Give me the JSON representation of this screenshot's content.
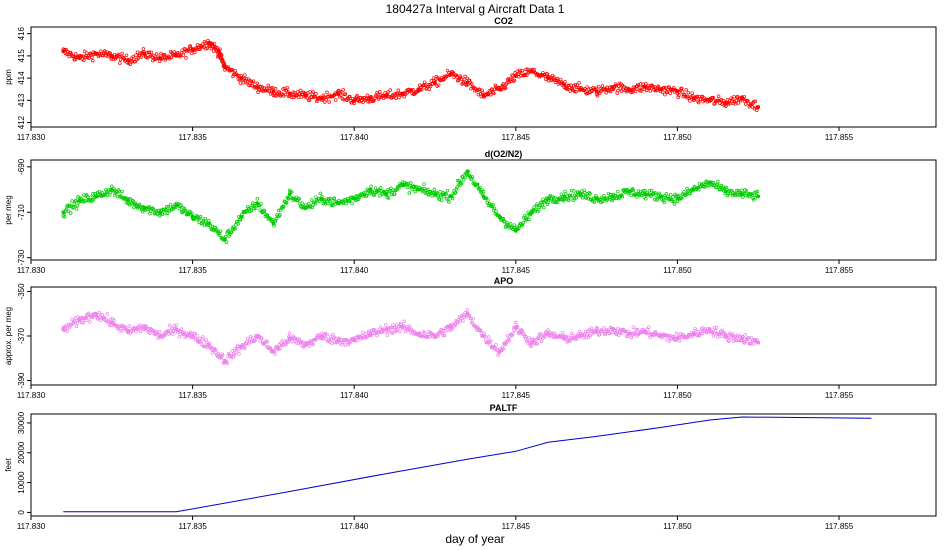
{
  "figure": {
    "title": "180427a   Interval g Aircraft Data 1",
    "xlabel": "day of year"
  },
  "chart_data": [
    {
      "type": "scatter",
      "title": "CO2",
      "xlabel": "",
      "ylabel": "ppm",
      "xlim": [
        117.83,
        117.858
      ],
      "ylim": [
        411.8,
        416.3
      ],
      "xticks": [
        "117.830",
        "117.835",
        "117.840",
        "117.845",
        "117.850",
        "117.855"
      ],
      "yticks": [
        "412",
        "413",
        "414",
        "415",
        "416"
      ],
      "color": "#ff0000",
      "series": [
        {
          "values": [
            [
              117.831,
              415.2
            ],
            [
              117.8315,
              414.9
            ],
            [
              117.832,
              415.1
            ],
            [
              117.8325,
              415.0
            ],
            [
              117.833,
              414.8
            ],
            [
              117.8335,
              415.1
            ],
            [
              117.834,
              414.9
            ],
            [
              117.8345,
              415.0
            ],
            [
              117.835,
              415.3
            ],
            [
              117.8355,
              415.6
            ],
            [
              117.8358,
              415.2
            ],
            [
              117.836,
              414.5
            ],
            [
              117.8365,
              414.0
            ],
            [
              117.837,
              413.6
            ],
            [
              117.8375,
              413.4
            ],
            [
              117.838,
              413.3
            ],
            [
              117.8385,
              413.2
            ],
            [
              117.839,
              413.1
            ],
            [
              117.8395,
              413.3
            ],
            [
              117.84,
              413.0
            ],
            [
              117.8405,
              413.1
            ],
            [
              117.841,
              413.2
            ],
            [
              117.8415,
              413.3
            ],
            [
              117.842,
              413.5
            ],
            [
              117.8425,
              413.8
            ],
            [
              117.843,
              414.2
            ],
            [
              117.8435,
              413.8
            ],
            [
              117.844,
              413.2
            ],
            [
              117.8445,
              413.5
            ],
            [
              117.845,
              414.1
            ],
            [
              117.8455,
              414.3
            ],
            [
              117.846,
              414.0
            ],
            [
              117.8465,
              413.7
            ],
            [
              117.847,
              413.5
            ],
            [
              117.8475,
              413.4
            ],
            [
              117.848,
              413.6
            ],
            [
              117.8485,
              413.5
            ],
            [
              117.849,
              413.6
            ],
            [
              117.8495,
              413.5
            ],
            [
              117.85,
              413.4
            ],
            [
              117.8505,
              413.1
            ],
            [
              117.851,
              413.0
            ],
            [
              117.8515,
              412.9
            ],
            [
              117.852,
              413.1
            ],
            [
              117.8525,
              412.7
            ]
          ]
        }
      ]
    },
    {
      "type": "scatter",
      "title": "d(O2/N2)",
      "xlabel": "",
      "ylabel": "per meg",
      "xlim": [
        117.83,
        117.858
      ],
      "ylim": [
        -731,
        -687
      ],
      "xticks": [
        "117.830",
        "117.835",
        "117.840",
        "117.845",
        "117.850",
        "117.855"
      ],
      "yticks": [
        "-730",
        "-710",
        "-690"
      ],
      "color": "#00cc00",
      "series": [
        {
          "values": [
            [
              117.831,
              -710
            ],
            [
              117.8315,
              -705
            ],
            [
              117.832,
              -703
            ],
            [
              117.8325,
              -700
            ],
            [
              117.833,
              -705
            ],
            [
              117.8335,
              -708
            ],
            [
              117.834,
              -710
            ],
            [
              117.8345,
              -707
            ],
            [
              117.835,
              -712
            ],
            [
              117.8355,
              -715
            ],
            [
              117.836,
              -722
            ],
            [
              117.8365,
              -712
            ],
            [
              117.837,
              -706
            ],
            [
              117.8375,
              -715
            ],
            [
              117.838,
              -702
            ],
            [
              117.8385,
              -708
            ],
            [
              117.839,
              -704
            ],
            [
              117.8395,
              -706
            ],
            [
              117.84,
              -704
            ],
            [
              117.8405,
              -700
            ],
            [
              117.841,
              -702
            ],
            [
              117.8415,
              -698
            ],
            [
              117.842,
              -700
            ],
            [
              117.8425,
              -702
            ],
            [
              117.843,
              -703
            ],
            [
              117.8435,
              -692
            ],
            [
              117.844,
              -703
            ],
            [
              117.8445,
              -712
            ],
            [
              117.845,
              -718
            ],
            [
              117.8455,
              -710
            ],
            [
              117.846,
              -704
            ],
            [
              117.8465,
              -703
            ],
            [
              117.847,
              -702
            ],
            [
              117.8475,
              -704
            ],
            [
              117.848,
              -703
            ],
            [
              117.8485,
              -701
            ],
            [
              117.849,
              -702
            ],
            [
              117.8495,
              -703
            ],
            [
              117.85,
              -704
            ],
            [
              117.8505,
              -700
            ],
            [
              117.851,
              -697
            ],
            [
              117.8515,
              -701
            ],
            [
              117.852,
              -702
            ],
            [
              117.8525,
              -703
            ]
          ]
        }
      ]
    },
    {
      "type": "scatter",
      "title": "APO",
      "xlabel": "",
      "ylabel": "approx. per meg",
      "xlim": [
        117.83,
        117.858
      ],
      "ylim": [
        -392,
        -348
      ],
      "xticks": [
        "117.830",
        "117.835",
        "117.840",
        "117.845",
        "117.850",
        "117.855"
      ],
      "yticks": [
        "-390",
        "-370",
        "-350"
      ],
      "color": "#ee82ee",
      "series": [
        {
          "values": [
            [
              117.831,
              -367
            ],
            [
              117.8315,
              -363
            ],
            [
              117.832,
              -360
            ],
            [
              117.8325,
              -364
            ],
            [
              117.833,
              -368
            ],
            [
              117.8335,
              -366
            ],
            [
              117.834,
              -370
            ],
            [
              117.8345,
              -367
            ],
            [
              117.835,
              -370
            ],
            [
              117.8355,
              -374
            ],
            [
              117.836,
              -381
            ],
            [
              117.8365,
              -375
            ],
            [
              117.837,
              -370
            ],
            [
              117.8375,
              -377
            ],
            [
              117.838,
              -371
            ],
            [
              117.8385,
              -374
            ],
            [
              117.839,
              -370
            ],
            [
              117.8395,
              -372
            ],
            [
              117.84,
              -372
            ],
            [
              117.8405,
              -369
            ],
            [
              117.841,
              -367
            ],
            [
              117.8415,
              -366
            ],
            [
              117.842,
              -369
            ],
            [
              117.8425,
              -370
            ],
            [
              117.843,
              -366
            ],
            [
              117.8435,
              -360
            ],
            [
              117.844,
              -370
            ],
            [
              117.8445,
              -377
            ],
            [
              117.845,
              -366
            ],
            [
              117.8455,
              -373
            ],
            [
              117.846,
              -369
            ],
            [
              117.8465,
              -371
            ],
            [
              117.847,
              -370
            ],
            [
              117.8475,
              -368
            ],
            [
              117.848,
              -367
            ],
            [
              117.8485,
              -369
            ],
            [
              117.849,
              -368
            ],
            [
              117.8495,
              -370
            ],
            [
              117.85,
              -371
            ],
            [
              117.8505,
              -369
            ],
            [
              117.851,
              -367
            ],
            [
              117.8515,
              -370
            ],
            [
              117.852,
              -371
            ],
            [
              117.8525,
              -373
            ]
          ]
        }
      ]
    },
    {
      "type": "line",
      "title": "PALTF",
      "xlabel": "",
      "ylabel": "feet",
      "xlim": [
        117.83,
        117.858
      ],
      "ylim": [
        -1200,
        33000
      ],
      "xticks": [
        "117.830",
        "117.835",
        "117.840",
        "117.845",
        "117.850",
        "117.855"
      ],
      "yticks": [
        "0",
        "10000",
        "20000",
        "30000"
      ],
      "color": "#0000cc",
      "series": [
        {
          "values": [
            [
              117.831,
              200
            ],
            [
              117.8345,
              200
            ],
            [
              117.838,
              7000
            ],
            [
              117.841,
              13000
            ],
            [
              117.8435,
              17800
            ],
            [
              117.845,
              20500
            ],
            [
              117.846,
              23500
            ],
            [
              117.8475,
              25500
            ],
            [
              117.8495,
              28500
            ],
            [
              117.851,
              31000
            ],
            [
              117.852,
              32000
            ],
            [
              117.853,
              31900
            ],
            [
              117.856,
              31600
            ]
          ]
        }
      ]
    }
  ]
}
